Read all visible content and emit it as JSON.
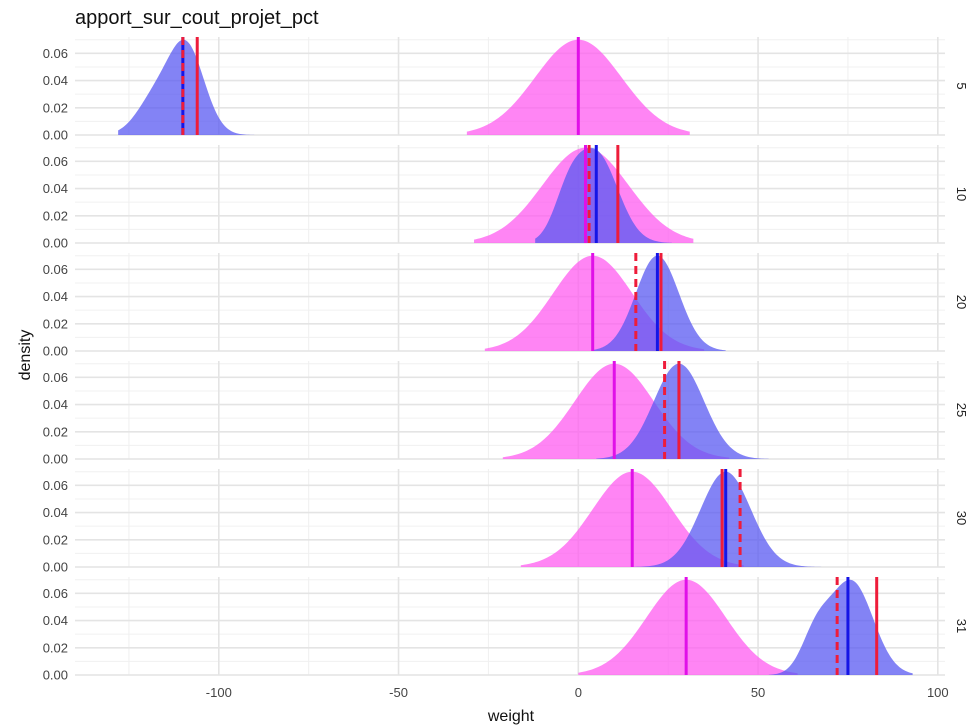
{
  "chart_data": {
    "type": "area",
    "title": "apport_sur_cout_projet_pct",
    "xlabel": "weight",
    "ylabel": "density",
    "xlim": [
      -140,
      102
    ],
    "ylim": [
      0,
      0.072
    ],
    "x_ticks": [
      -100,
      -50,
      0,
      50,
      100
    ],
    "y_ticks": [
      0.0,
      0.02,
      0.04,
      0.06
    ],
    "grid": true,
    "colors": {
      "blue_fill": "#5a5af2",
      "pink_fill": "#ff5cf0",
      "blue_line": "#1515e6",
      "pink_line": "#e010e8",
      "red_line": "#ee1c3a"
    },
    "panels": [
      {
        "label": "5",
        "blue": {
          "mean": -109,
          "sd": 5,
          "bimodal": {
            "mean": -118,
            "sd": 5,
            "weight": 0.3
          },
          "range": [
            -128,
            -90
          ]
        },
        "pink": {
          "mean": 0,
          "sd": 12,
          "range": [
            -31,
            31
          ]
        },
        "lines": {
          "blue": -110,
          "pink": 0,
          "red_solid": -106,
          "red_dashed": -110
        }
      },
      {
        "label": "10",
        "blue": {
          "mean": 5,
          "sd": 6,
          "bimodal": {
            "mean": -3,
            "sd": 4,
            "weight": 0.3
          },
          "range": [
            -12,
            26
          ]
        },
        "pink": {
          "mean": 2,
          "sd": 12,
          "range": [
            -29,
            32
          ]
        },
        "lines": {
          "blue": 5,
          "pink": 2,
          "red_solid": 11,
          "red_dashed": 3
        }
      },
      {
        "label": "20",
        "blue": {
          "mean": 22,
          "sd": 6,
          "range": [
            4,
            41
          ]
        },
        "pink": {
          "mean": 4,
          "sd": 11,
          "range": [
            -26,
            35
          ]
        },
        "lines": {
          "blue": 22,
          "pink": 4,
          "red_solid": 23,
          "red_dashed": 16
        }
      },
      {
        "label": "25",
        "blue": {
          "mean": 28,
          "sd": 7,
          "range": [
            5,
            53
          ]
        },
        "pink": {
          "mean": 10,
          "sd": 11,
          "range": [
            -21,
            42
          ]
        },
        "lines": {
          "blue": 28,
          "pink": 10,
          "red_solid": 28,
          "red_dashed": 24
        }
      },
      {
        "label": "30",
        "blue": {
          "mean": 41,
          "sd": 7,
          "range": [
            15,
            71
          ]
        },
        "pink": {
          "mean": 15,
          "sd": 11,
          "range": [
            -16,
            46
          ]
        },
        "lines": {
          "blue": 41,
          "pink": 15,
          "red_solid": 40,
          "red_dashed": 45
        }
      },
      {
        "label": "31",
        "blue": {
          "mean": 76,
          "sd": 6,
          "bimodal": {
            "mean": 66,
            "sd": 4,
            "weight": 0.3
          },
          "range": [
            53,
            93
          ]
        },
        "pink": {
          "mean": 30,
          "sd": 11,
          "range": [
            0,
            61
          ]
        },
        "lines": {
          "blue": 75,
          "pink": 30,
          "red_solid": 83,
          "red_dashed": 72
        }
      }
    ]
  }
}
